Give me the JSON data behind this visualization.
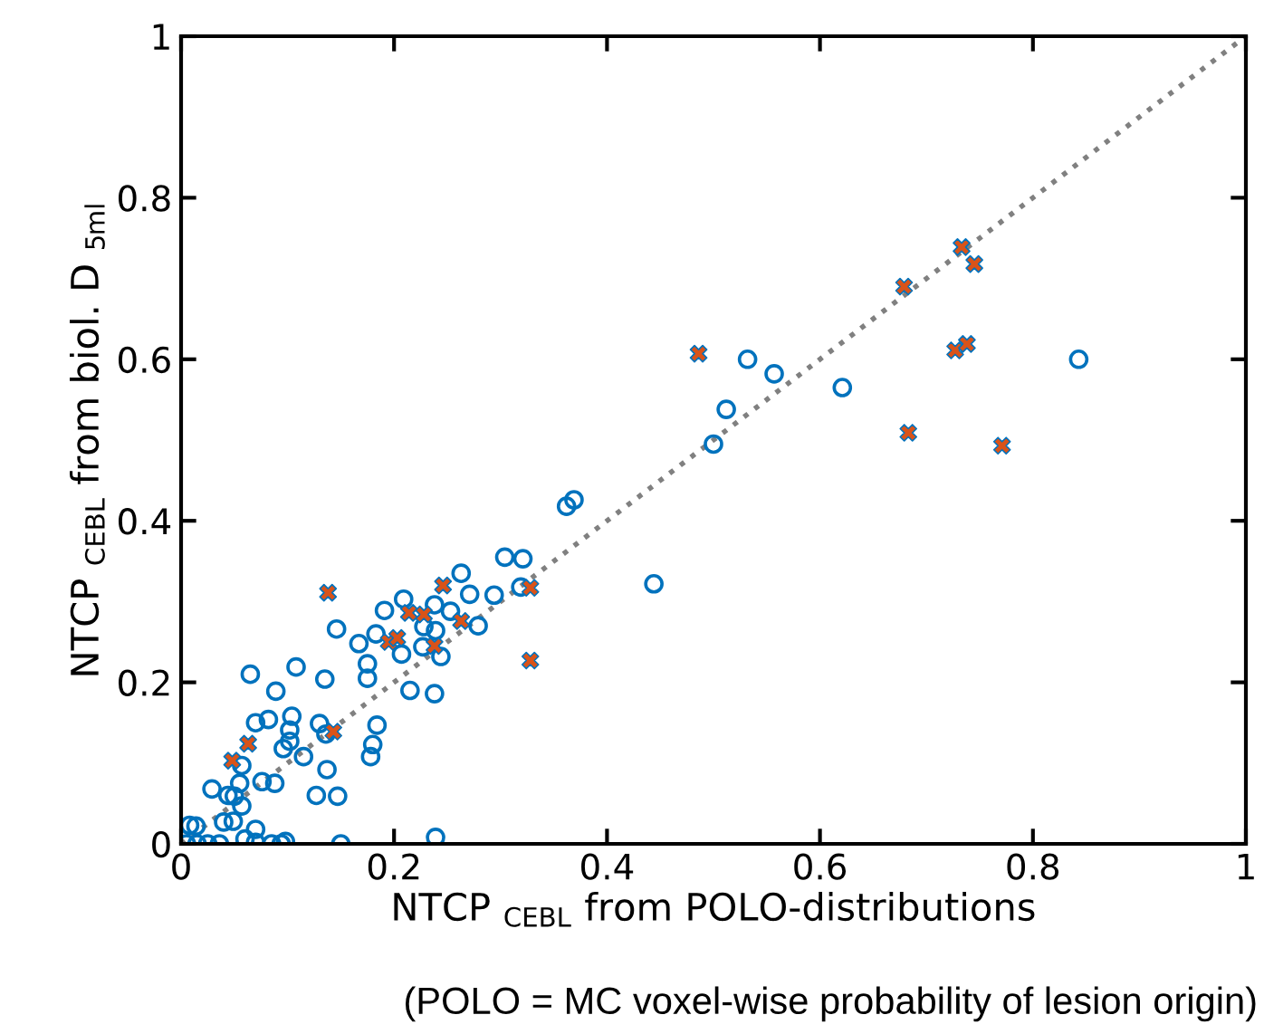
{
  "chart_data": {
    "type": "scatter",
    "xlabel": "NTCP $_{CEBL}$ from POLO-distributions",
    "ylabel": "NTCP $_{CEBL}$ from biol. D $_{5ml}$",
    "annotations": [
      "(POLO = MC voxel-wise probability of lesion origin)"
    ],
    "xlim": [
      0,
      1
    ],
    "ylim": [
      0,
      1
    ],
    "xticks": [
      0,
      0.2,
      0.4,
      0.6,
      0.8,
      1
    ],
    "yticks": [
      0,
      0.2,
      0.4,
      0.6,
      0.8,
      1
    ],
    "grid": false,
    "legend": false,
    "series": [
      {
        "type": "line",
        "color": "#808080",
        "line_style": "dotted",
        "marker": "none",
        "x": [
          0,
          1
        ],
        "values": [
          0,
          1
        ]
      },
      {
        "color": "#0072bd",
        "marker": "circle",
        "x": [
          0.843,
          0.532,
          0.557,
          0.621,
          0.512,
          0.5,
          0.444,
          0.362,
          0.369,
          0.304,
          0.321,
          0.319,
          0.294,
          0.263,
          0.271,
          0.279,
          0.253,
          0.238,
          0.209,
          0.191,
          0.239,
          0.228,
          0.227,
          0.244,
          0.207,
          0.183,
          0.167,
          0.175,
          0.175,
          0.215,
          0.238,
          0.146,
          0.135,
          0.108,
          0.065,
          0.089,
          0.082,
          0.104,
          0.07,
          0.13,
          0.136,
          0.102,
          0.102,
          0.096,
          0.115,
          0.184,
          0.18,
          0.178,
          0.137,
          0.076,
          0.088,
          0.029,
          0.057,
          0.055,
          0.044,
          0.05,
          0.057,
          0.127,
          0.147,
          0.049,
          0.04,
          0.008,
          0.014,
          0.07,
          0.07,
          0.06,
          0.005,
          0.015,
          0.025,
          0.036,
          0.085,
          0.094,
          0.098,
          0.15,
          0.239
        ],
        "values": [
          0.6,
          0.6,
          0.582,
          0.565,
          0.538,
          0.495,
          0.322,
          0.418,
          0.426,
          0.355,
          0.353,
          0.318,
          0.308,
          0.335,
          0.309,
          0.27,
          0.288,
          0.296,
          0.303,
          0.289,
          0.264,
          0.269,
          0.244,
          0.232,
          0.235,
          0.26,
          0.248,
          0.223,
          0.205,
          0.19,
          0.186,
          0.266,
          0.204,
          0.219,
          0.21,
          0.189,
          0.154,
          0.158,
          0.15,
          0.149,
          0.136,
          0.141,
          0.127,
          0.118,
          0.108,
          0.147,
          0.123,
          0.108,
          0.092,
          0.077,
          0.075,
          0.068,
          0.097,
          0.075,
          0.06,
          0.059,
          0.047,
          0.06,
          0.059,
          0.028,
          0.027,
          0.023,
          0.022,
          0.018,
          0.002,
          0.006,
          0,
          0,
          0,
          0,
          0,
          0,
          0.003,
          0,
          0.008
        ]
      },
      {
        "color": "#d95319",
        "marker": "cross",
        "x": [
          0.486,
          0.733,
          0.745,
          0.679,
          0.727,
          0.738,
          0.683,
          0.771,
          0.138,
          0.246,
          0.328,
          0.328,
          0.214,
          0.228,
          0.263,
          0.195,
          0.203,
          0.238,
          0.143,
          0.063,
          0.048
        ],
        "values": [
          0.607,
          0.739,
          0.718,
          0.69,
          0.611,
          0.619,
          0.509,
          0.493,
          0.311,
          0.32,
          0.317,
          0.227,
          0.286,
          0.284,
          0.276,
          0.25,
          0.255,
          0.245,
          0.139,
          0.124,
          0.103
        ]
      }
    ]
  }
}
